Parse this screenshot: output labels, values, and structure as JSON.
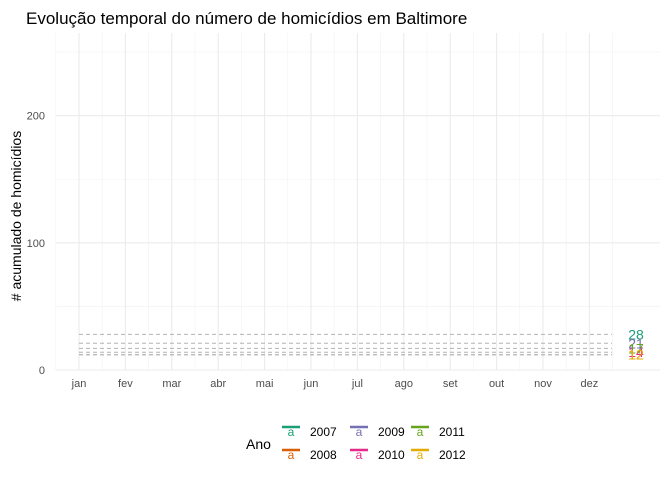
{
  "chart_data": {
    "type": "line",
    "title": "Evolução temporal do número de homicídios em Baltimore",
    "xlabel": "",
    "ylabel": "# acumulado de homicídios",
    "x_ticks": [
      "jan",
      "fev",
      "mar",
      "abr",
      "mai",
      "jun",
      "jul",
      "ago",
      "set",
      "out",
      "nov",
      "dez"
    ],
    "y_ticks": [
      0,
      100,
      200
    ],
    "ylim": [
      0,
      265
    ],
    "grid": true,
    "legend": {
      "title": "Ano",
      "position": "bottom",
      "glyph": "a"
    },
    "series": [
      {
        "name": "2007",
        "color": "#1b9e77",
        "final_value": 28
      },
      {
        "name": "2008",
        "color": "#d95f02",
        "final_value": 12
      },
      {
        "name": "2009",
        "color": "#7570b3",
        "final_value": 21
      },
      {
        "name": "2010",
        "color": "#e7298a",
        "final_value": 14
      },
      {
        "name": "2011",
        "color": "#66a61e",
        "final_value": 17
      },
      {
        "name": "2012",
        "color": "#e6ab02",
        "final_value": 12
      }
    ]
  }
}
